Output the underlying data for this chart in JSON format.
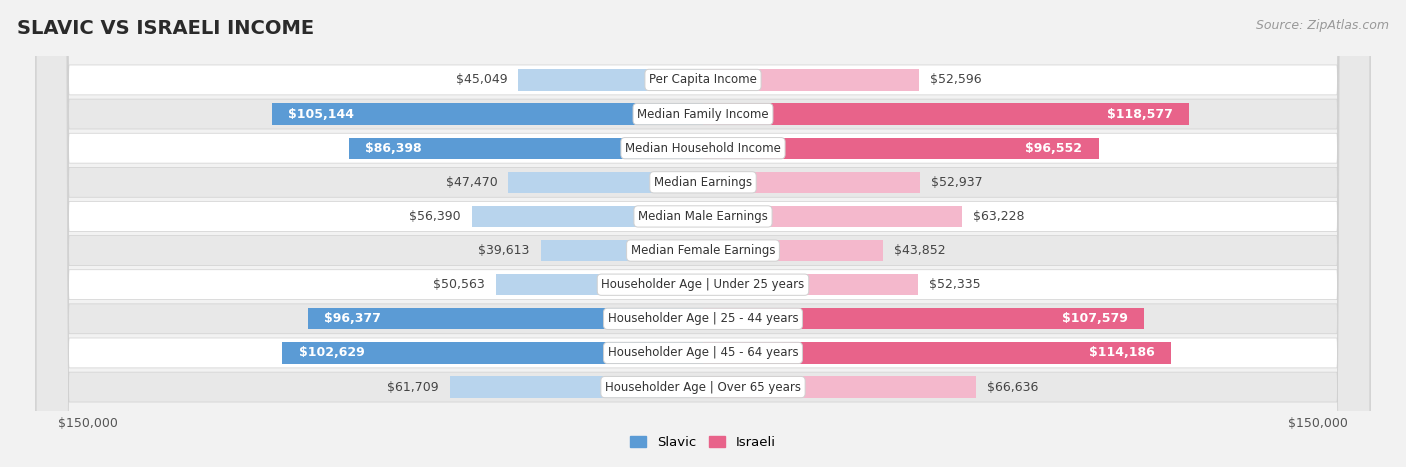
{
  "title": "SLAVIC VS ISRAELI INCOME",
  "source": "Source: ZipAtlas.com",
  "categories": [
    "Per Capita Income",
    "Median Family Income",
    "Median Household Income",
    "Median Earnings",
    "Median Male Earnings",
    "Median Female Earnings",
    "Householder Age | Under 25 years",
    "Householder Age | 25 - 44 years",
    "Householder Age | 45 - 64 years",
    "Householder Age | Over 65 years"
  ],
  "slavic_values": [
    45049,
    105144,
    86398,
    47470,
    56390,
    39613,
    50563,
    96377,
    102629,
    61709
  ],
  "israeli_values": [
    52596,
    118577,
    96552,
    52937,
    63228,
    43852,
    52335,
    107579,
    114186,
    66636
  ],
  "slavic_labels": [
    "$45,049",
    "$105,144",
    "$86,398",
    "$47,470",
    "$56,390",
    "$39,613",
    "$50,563",
    "$96,377",
    "$102,629",
    "$61,709"
  ],
  "israeli_labels": [
    "$52,596",
    "$118,577",
    "$96,552",
    "$52,937",
    "$63,228",
    "$43,852",
    "$52,335",
    "$107,579",
    "$114,186",
    "$66,636"
  ],
  "max_value": 150000,
  "slavic_color_light": "#b8d4ed",
  "slavic_color_dark": "#5b9bd5",
  "israeli_color_light": "#f4b8cc",
  "israeli_color_dark": "#e8638a",
  "bg_color": "#f2f2f2",
  "row_bg_light": "#ffffff",
  "row_bg_dark": "#e8e8e8",
  "label_threshold": 80000,
  "title_fontsize": 14,
  "source_fontsize": 9,
  "bar_label_fontsize": 9,
  "category_fontsize": 8.5,
  "axis_label_fontsize": 9
}
